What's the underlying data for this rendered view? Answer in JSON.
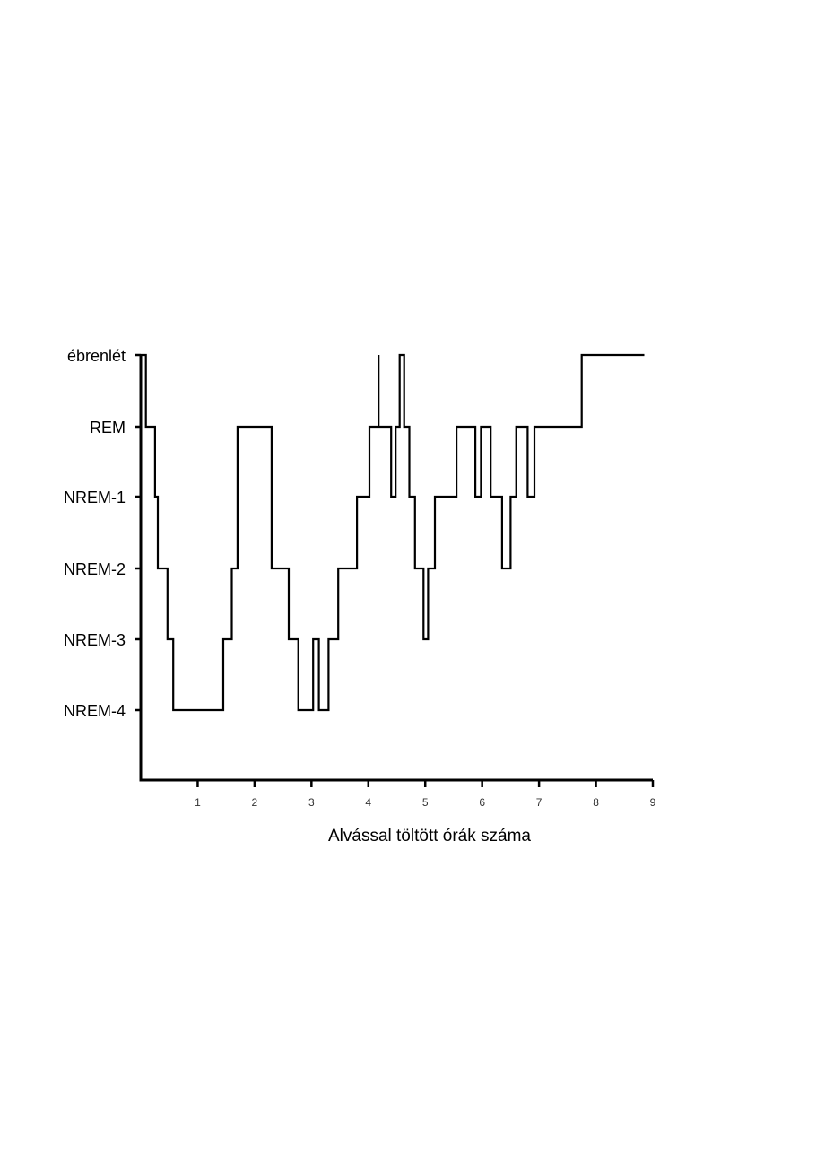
{
  "chart_data": {
    "type": "line",
    "title": "",
    "xlabel": "Alvással töltött órák száma",
    "ylabel": "",
    "xlim": [
      0,
      9
    ],
    "x_ticks": [
      "1",
      "2",
      "3",
      "4",
      "5",
      "6",
      "7",
      "8",
      "9"
    ],
    "y_categories": [
      "NREM-4",
      "NREM-3",
      "NREM-2",
      "NREM-1",
      "REM",
      "ébrenlét"
    ],
    "grid": false,
    "legend": "none",
    "line_color": "#000000",
    "series": [
      {
        "step": true,
        "points": [
          {
            "x": 0.0,
            "stage": "ébrenlét"
          },
          {
            "x": 0.09,
            "stage": "REM"
          },
          {
            "x": 0.25,
            "stage": "NREM-1"
          },
          {
            "x": 0.3,
            "stage": "NREM-2"
          },
          {
            "x": 0.47,
            "stage": "NREM-3"
          },
          {
            "x": 0.57,
            "stage": "NREM-4"
          },
          {
            "x": 1.45,
            "stage": "NREM-3"
          },
          {
            "x": 1.6,
            "stage": "NREM-2"
          },
          {
            "x": 1.7,
            "stage": "REM"
          },
          {
            "x": 2.3,
            "stage": "NREM-2"
          },
          {
            "x": 2.6,
            "stage": "NREM-3"
          },
          {
            "x": 2.77,
            "stage": "NREM-4"
          },
          {
            "x": 3.03,
            "stage": "NREM-3"
          },
          {
            "x": 3.13,
            "stage": "NREM-4"
          },
          {
            "x": 3.3,
            "stage": "NREM-3"
          },
          {
            "x": 3.47,
            "stage": "NREM-2"
          },
          {
            "x": 3.8,
            "stage": "NREM-1"
          },
          {
            "x": 4.02,
            "stage": "REM"
          },
          {
            "x": 4.18,
            "stage": "ébrenlét"
          },
          {
            "x": 4.18,
            "stage": "REM"
          },
          {
            "x": 4.4,
            "stage": "NREM-1"
          },
          {
            "x": 4.48,
            "stage": "REM"
          },
          {
            "x": 4.55,
            "stage": "ébrenlét"
          },
          {
            "x": 4.63,
            "stage": "REM"
          },
          {
            "x": 4.72,
            "stage": "NREM-1"
          },
          {
            "x": 4.82,
            "stage": "NREM-2"
          },
          {
            "x": 4.97,
            "stage": "NREM-3"
          },
          {
            "x": 5.05,
            "stage": "NREM-2"
          },
          {
            "x": 5.17,
            "stage": "NREM-1"
          },
          {
            "x": 5.55,
            "stage": "REM"
          },
          {
            "x": 5.88,
            "stage": "NREM-1"
          },
          {
            "x": 5.98,
            "stage": "REM"
          },
          {
            "x": 6.15,
            "stage": "NREM-1"
          },
          {
            "x": 6.35,
            "stage": "NREM-2"
          },
          {
            "x": 6.5,
            "stage": "NREM-1"
          },
          {
            "x": 6.6,
            "stage": "REM"
          },
          {
            "x": 6.8,
            "stage": "NREM-1"
          },
          {
            "x": 6.92,
            "stage": "REM"
          },
          {
            "x": 7.75,
            "stage": "ébrenlét"
          },
          {
            "x": 8.85,
            "stage": "ébrenlét"
          }
        ]
      }
    ]
  }
}
